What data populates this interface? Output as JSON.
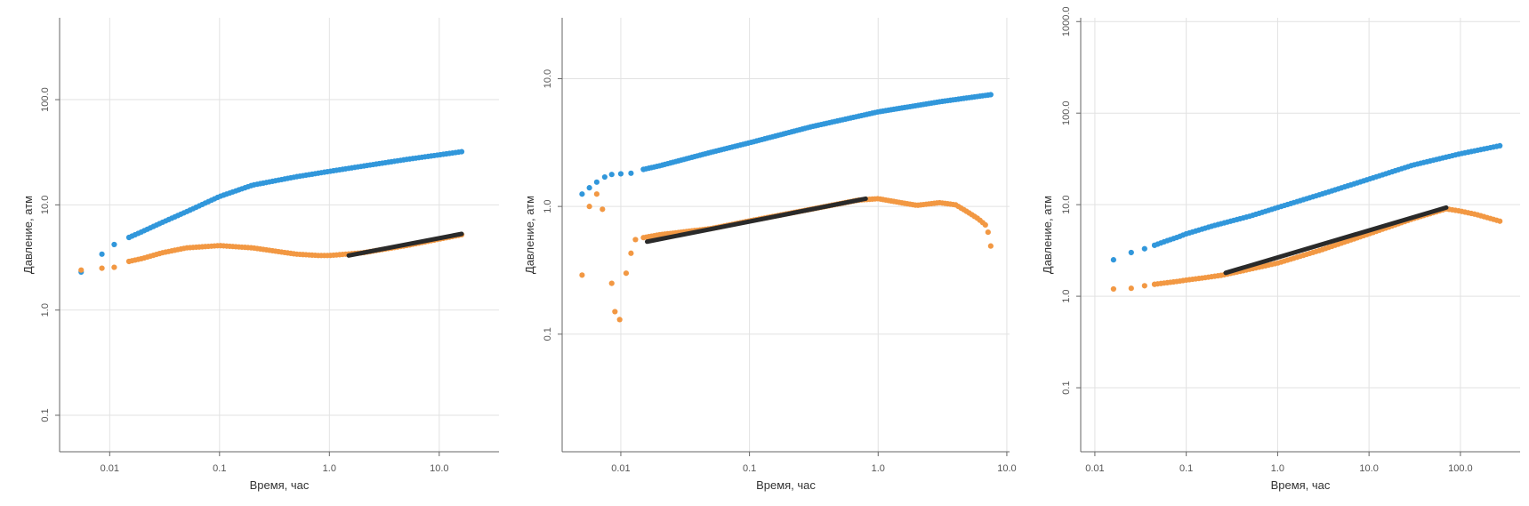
{
  "colors": {
    "derivative": "#f29843",
    "pressure": "#3197db",
    "fit_line": "#2a2a2a",
    "grid": "#e2e2e2",
    "axis": "#666666"
  },
  "chart_data": [
    {
      "type": "scatter",
      "log_x": true,
      "log_y": true,
      "xlim": [
        0.0035,
        35
      ],
      "ylim": [
        0.045,
        600
      ],
      "xticks": [
        "0.01",
        "0.1",
        "1.0",
        "10.0"
      ],
      "yticks": [
        "0.1",
        "1.0",
        "10.0",
        "100.0"
      ],
      "xlabel": "Время, час",
      "ylabel": "Давление, атм",
      "grid": true,
      "series": [
        {
          "role": "pressure",
          "x": [
            0.0055,
            0.0085,
            0.011,
            0.015,
            0.02,
            0.03,
            0.05,
            0.1,
            0.2,
            0.5,
            1,
            2,
            5,
            16
          ],
          "y": [
            2.3,
            3.4,
            4.2,
            4.9,
            5.6,
            6.8,
            8.6,
            12,
            15.4,
            18.5,
            20.8,
            23.3,
            27,
            32
          ]
        },
        {
          "role": "derivative",
          "x": [
            0.0055,
            0.0085,
            0.011,
            0.015,
            0.02,
            0.03,
            0.05,
            0.1,
            0.2,
            0.5,
            0.8,
            1,
            2,
            5,
            16
          ],
          "y": [
            2.4,
            2.5,
            2.55,
            2.9,
            3.1,
            3.5,
            3.9,
            4.1,
            3.9,
            3.4,
            3.3,
            3.3,
            3.5,
            4.1,
            5.2
          ]
        },
        {
          "role": "fit_line",
          "x": [
            1.5,
            16
          ],
          "y": [
            3.3,
            5.3
          ]
        }
      ]
    },
    {
      "type": "scatter",
      "log_x": true,
      "log_y": true,
      "xlim": [
        0.0035,
        10.5
      ],
      "ylim": [
        0.012,
        30
      ],
      "xticks": [
        "0.01",
        "0.1",
        "1.0",
        "10.0"
      ],
      "yticks": [
        "0.1",
        "1.0",
        "10.0"
      ],
      "xlabel": "Время, час",
      "ylabel": "Давление, атм",
      "grid": true,
      "series": [
        {
          "role": "pressure",
          "x": [
            0.005,
            0.0057,
            0.0065,
            0.0075,
            0.0085,
            0.01,
            0.012,
            0.015,
            0.02,
            0.05,
            0.1,
            0.3,
            1,
            3,
            7.5
          ],
          "y": [
            1.25,
            1.4,
            1.55,
            1.7,
            1.78,
            1.8,
            1.82,
            1.95,
            2.08,
            2.65,
            3.15,
            4.2,
            5.5,
            6.6,
            7.5
          ]
        },
        {
          "role": "derivative",
          "x": [
            0.005,
            0.0057,
            0.0065,
            0.0072,
            0.0085,
            0.009,
            0.0098,
            0.011,
            0.012,
            0.013,
            0.015,
            0.02,
            0.05,
            0.1,
            0.3,
            0.7,
            1,
            1.5,
            2,
            3,
            4,
            5,
            6,
            7,
            7.5
          ],
          "y": [
            0.29,
            1.0,
            1.25,
            0.95,
            0.25,
            0.15,
            0.13,
            0.3,
            0.43,
            0.55,
            0.57,
            0.6,
            0.67,
            0.77,
            0.95,
            1.12,
            1.15,
            1.07,
            1.02,
            1.07,
            1.03,
            0.9,
            0.8,
            0.7,
            0.49
          ]
        },
        {
          "role": "fit_line",
          "x": [
            0.016,
            0.8
          ],
          "y": [
            0.53,
            1.15
          ]
        }
      ]
    },
    {
      "type": "scatter",
      "log_x": true,
      "log_y": true,
      "xlim": [
        0.007,
        450
      ],
      "ylim": [
        0.02,
        1100
      ],
      "xticks": [
        "0.01",
        "0.1",
        "1.0",
        "10.0",
        "100.0"
      ],
      "yticks": [
        "0.1",
        "1.0",
        "10.0",
        "100.0",
        "1000.0"
      ],
      "xlabel": "Время, час",
      "ylabel": "Давление, атм",
      "grid": true,
      "series": [
        {
          "role": "pressure",
          "x": [
            0.016,
            0.025,
            0.035,
            0.045,
            0.06,
            0.08,
            0.1,
            0.2,
            0.5,
            1,
            3,
            10,
            30,
            100,
            270
          ],
          "y": [
            2.5,
            3.0,
            3.3,
            3.6,
            4.0,
            4.4,
            4.8,
            5.9,
            7.5,
            9.3,
            13,
            19,
            27,
            36,
            44
          ]
        },
        {
          "role": "derivative",
          "x": [
            0.016,
            0.025,
            0.035,
            0.045,
            0.06,
            0.08,
            0.1,
            0.15,
            0.25,
            0.4,
            1,
            3,
            10,
            30,
            70,
            100,
            150,
            270
          ],
          "y": [
            1.2,
            1.22,
            1.3,
            1.35,
            1.4,
            1.45,
            1.5,
            1.58,
            1.7,
            1.88,
            2.3,
            3.2,
            4.8,
            7.0,
            9.0,
            8.5,
            7.8,
            6.6
          ]
        },
        {
          "role": "fit_line",
          "x": [
            0.27,
            70
          ],
          "y": [
            1.8,
            9.3
          ]
        }
      ]
    }
  ]
}
